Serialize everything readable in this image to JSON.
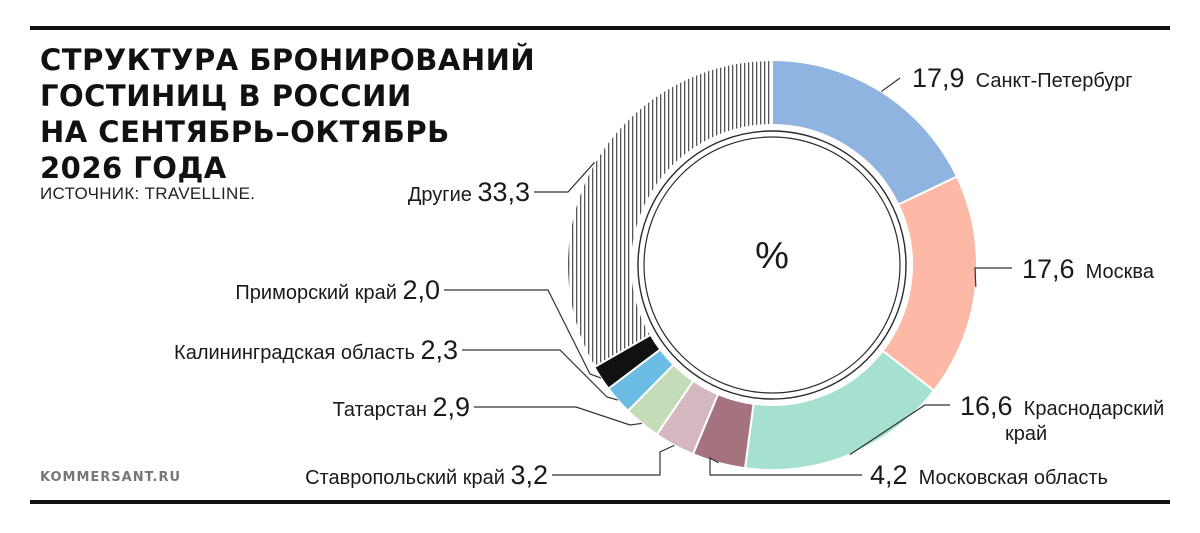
{
  "title_lines": [
    "СТРУКТУРА БРОНИРОВАНИЙ",
    "ГОСТИНИЦ В РОССИИ",
    "НА СЕНТЯБРЬ–ОКТЯБРЬ",
    "2026 ГОДА"
  ],
  "source": "ИСТОЧНИК: TRAVELLINE.",
  "site": "KOMMERSANT.RU",
  "chart_data": {
    "type": "pie",
    "center_label": "%",
    "slices": [
      {
        "label": "Санкт-Петербург",
        "value": 17.9,
        "value_text": "17,9",
        "color": "#8fb4df"
      },
      {
        "label": "Москва",
        "value": 17.6,
        "value_text": "17,6",
        "color": "#fdb8a6"
      },
      {
        "label": "Краснодарский край",
        "label_lines": [
          "Краснодарский",
          "край"
        ],
        "value": 16.6,
        "value_text": "16,6",
        "color": "#a6e0d1"
      },
      {
        "label": "Московская область",
        "value": 4.2,
        "value_text": "4,2",
        "color": "#a5737f"
      },
      {
        "label": "Ставропольский край",
        "value": 3.2,
        "value_text": "3,2",
        "color": "#d5b7c0"
      },
      {
        "label": "Татарстан",
        "value": 2.9,
        "value_text": "2,9",
        "color": "#c4ddb8"
      },
      {
        "label": "Калининградская область",
        "value": 2.3,
        "value_text": "2,3",
        "color": "#6cbde4"
      },
      {
        "label": "Приморский край",
        "value": 2.0,
        "value_text": "2,0",
        "color": "#111111"
      },
      {
        "label": "Другие",
        "value": 33.3,
        "value_text": "33,3",
        "color": "hatched"
      }
    ]
  }
}
